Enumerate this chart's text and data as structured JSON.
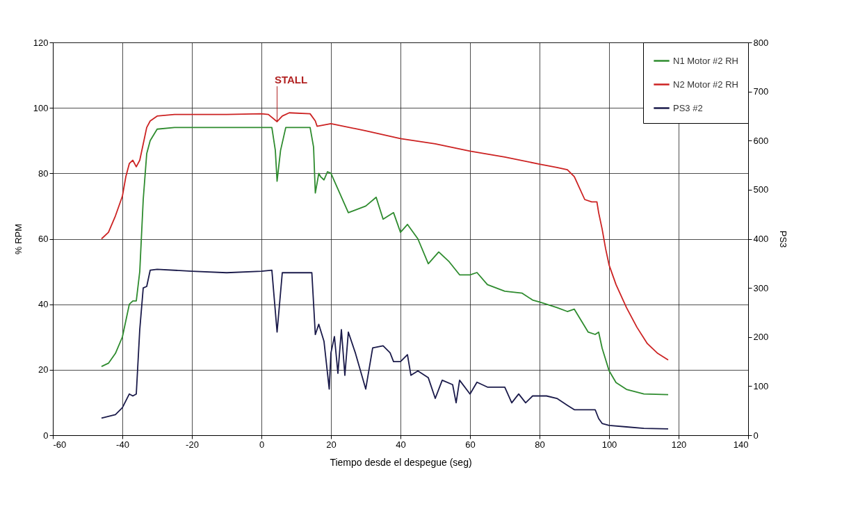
{
  "chart_data": {
    "type": "line",
    "xlabel": "Tiempo desde el despegue (seg)",
    "ylabel": "% RPM",
    "y2label": "PS3",
    "xlim": [
      -60,
      140
    ],
    "xticks": [
      -60,
      -40,
      -20,
      0,
      20,
      40,
      60,
      80,
      100,
      120,
      140
    ],
    "ylim": [
      0,
      120
    ],
    "yticks": [
      0,
      20,
      40,
      60,
      80,
      100,
      120
    ],
    "y2lim": [
      0,
      800
    ],
    "y2ticks": [
      0,
      100,
      200,
      300,
      400,
      500,
      600,
      700,
      800
    ],
    "grid": true,
    "legend": "top right",
    "line_style": "solid",
    "marker": "none",
    "annotations": [
      {
        "text": "STALL",
        "x": 4.5,
        "y": 95.8
      }
    ],
    "series": [
      {
        "name": "N1 Motor #2 RH",
        "color": "#2e8b2e",
        "x": [
          -46,
          -44,
          -42,
          -40,
          -39,
          -38,
          -37,
          -36,
          -35,
          -34,
          -33,
          -32,
          -30,
          -25,
          -10,
          0,
          3,
          4,
          4.5,
          5.5,
          7,
          14,
          15,
          15.5,
          16.5,
          17,
          18,
          19,
          20,
          25,
          30,
          33,
          35,
          38,
          40,
          42,
          45,
          48,
          51,
          54,
          57,
          60,
          62,
          65,
          70,
          75,
          78,
          80,
          85,
          88,
          90,
          92,
          94,
          96,
          97,
          98,
          100,
          102,
          105,
          110,
          117
        ],
        "values": [
          21,
          22,
          25,
          30,
          35,
          40,
          41,
          41,
          50,
          72,
          86,
          90,
          93.5,
          94,
          94,
          94,
          94,
          87,
          77.6,
          87,
          94,
          94,
          88,
          74,
          80,
          79,
          78,
          80.5,
          80,
          68,
          70,
          72.7,
          66,
          68,
          62,
          64.4,
          60,
          52.4,
          56,
          53,
          49,
          49,
          49.7,
          46,
          44,
          43.4,
          41.3,
          40.7,
          39,
          37.8,
          38.5,
          35,
          31.5,
          30.8,
          31.5,
          26.6,
          19.7,
          16.1,
          14,
          12.6,
          12.4
        ]
      },
      {
        "name": "N2 Motor #2 RH",
        "color": "#cc2222",
        "x": [
          -46,
          -44,
          -42,
          -40,
          -39,
          -38,
          -37,
          -36,
          -35,
          -34,
          -33,
          -32,
          -30,
          -25,
          -10,
          0,
          2,
          4.5,
          6,
          8,
          14,
          15.5,
          16,
          20,
          30,
          40,
          50,
          60,
          70,
          80,
          85,
          88,
          90,
          93,
          95,
          96.5,
          97,
          98,
          99,
          100,
          102,
          105,
          108,
          111,
          114,
          117
        ],
        "values": [
          60,
          62,
          67,
          73,
          79,
          83,
          84,
          82,
          84,
          89,
          94,
          96,
          97.5,
          98,
          98,
          98.2,
          98,
          95.8,
          97.5,
          98.5,
          98.2,
          96,
          94.4,
          95.2,
          93,
          90.6,
          89,
          86.8,
          85,
          82.8,
          81.8,
          81.1,
          79,
          72,
          71.3,
          71.3,
          68,
          63,
          57,
          52,
          46,
          39,
          33,
          28,
          25,
          23
        ]
      },
      {
        "name": "PS3 #2",
        "color": "#1a1a4a",
        "axis": "y2",
        "x": [
          -46,
          -42,
          -40,
          -38,
          -37,
          -36,
          -35,
          -34,
          -33,
          -32,
          -30,
          -20,
          -10,
          0,
          3,
          4.5,
          6,
          14.5,
          15.5,
          16.5,
          18,
          19.5,
          20,
          21,
          22,
          23,
          24,
          25,
          27,
          30,
          32,
          35,
          37,
          38,
          40,
          42,
          43,
          45,
          48,
          50,
          52,
          55,
          56,
          57,
          60,
          62,
          65,
          70,
          72,
          74,
          76,
          78,
          80,
          82,
          85,
          88,
          90,
          94,
          96,
          97,
          98,
          100,
          105,
          110,
          117
        ],
        "values": [
          35,
          42,
          56,
          84,
          80,
          84,
          215,
          300,
          303,
          336,
          338,
          334,
          331,
          334,
          336,
          210,
          331,
          331,
          205,
          226,
          191,
          94,
          168,
          201,
          126,
          215,
          122,
          210,
          168,
          94,
          178,
          182,
          168,
          150,
          150,
          164,
          122,
          131,
          117,
          75,
          112,
          103,
          66,
          112,
          84,
          108,
          98,
          98,
          66,
          84,
          66,
          80,
          80,
          80,
          75,
          61,
          52,
          52,
          52,
          34,
          24,
          20,
          17,
          14,
          13
        ]
      }
    ]
  }
}
